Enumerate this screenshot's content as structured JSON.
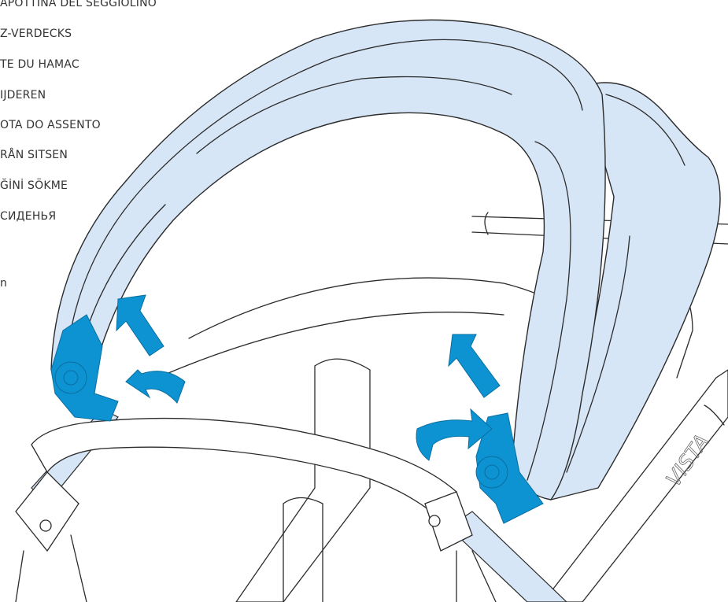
{
  "captions": [
    "APOTTINA DEL SEGGIOLINO",
    "Z-VERDECKS",
    "TE DU HAMAC",
    "IJDEREN",
    "OTA DO ASSENTO",
    "RÅN SITSEN",
    "ĞİNİ SÖKME",
    "СИДЕНЬЯ",
    "n"
  ],
  "brand": "VISTA"
}
